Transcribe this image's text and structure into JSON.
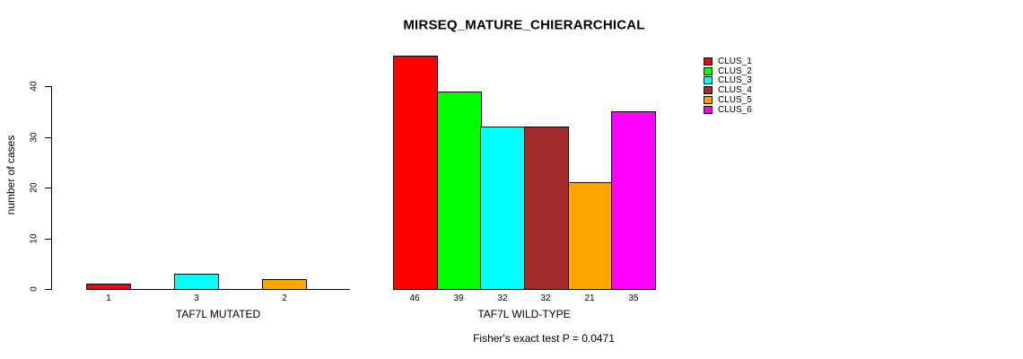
{
  "chart_data": {
    "type": "bar",
    "title": "MIRSEQ_MATURE_CHIERARCHICAL",
    "ylabel": "number of cases",
    "footnote": "Fisher's exact test P = 0.0471",
    "yticks": [
      0,
      10,
      20,
      30,
      40
    ],
    "ylim": [
      0,
      46
    ],
    "grid": false,
    "legend_position": "top-right",
    "legend": [
      {
        "label": "CLUS_1",
        "color": "#FF0000"
      },
      {
        "label": "CLUS_2",
        "color": "#00FF00"
      },
      {
        "label": "CLUS_3",
        "color": "#00FFFF"
      },
      {
        "label": "CLUS_4",
        "color": "#A52A2A"
      },
      {
        "label": "CLUS_5",
        "color": "#FFA500"
      },
      {
        "label": "CLUS_6",
        "color": "#FF00FF"
      }
    ],
    "groups": [
      {
        "label": "TAF7L MUTATED",
        "values": [
          1,
          0,
          3,
          0,
          2,
          0
        ],
        "bar_labels": [
          "1",
          "",
          "3",
          "",
          "2",
          ""
        ]
      },
      {
        "label": "TAF7L WILD-TYPE",
        "values": [
          46,
          39,
          32,
          32,
          21,
          35
        ],
        "bar_labels": [
          "46",
          "39",
          "32",
          "32",
          "21",
          "35"
        ]
      }
    ]
  }
}
